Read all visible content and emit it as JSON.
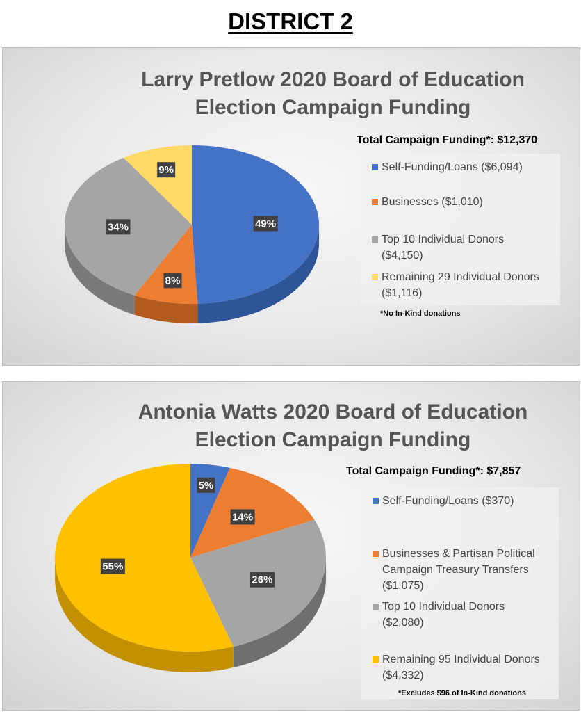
{
  "page_title": "DISTRICT 2",
  "chart_data": [
    {
      "type": "pie",
      "title_line1": "Larry Pretlow 2020 Board of Education",
      "title_line2": "Election Campaign Funding",
      "total_label": "Total Campaign Funding*: $12,370",
      "footnote": "*No In-Kind donations",
      "slices": [
        {
          "label_line1": "Self-Funding/Loans ($6,094)",
          "label_line2": "",
          "value": 6094,
          "percent_label": "49%",
          "color": "#4472c4",
          "side": "#2e5597"
        },
        {
          "label_line1": "Businesses ($1,010)",
          "label_line2": "",
          "value": 1010,
          "percent_label": "8%",
          "color": "#ed7d31",
          "side": "#b35b1f"
        },
        {
          "label_line1": "Top 10 Individual Donors",
          "label_line2": "($4,150)",
          "value": 4150,
          "percent_label": "34%",
          "color": "#a5a5a5",
          "side": "#7a7a7a"
        },
        {
          "label_line1": "Remaining 29 Individual Donors",
          "label_line2": "($1,116)",
          "value": 1116,
          "percent_label": "9%",
          "color": "#ffd966",
          "side": "#c9a83a"
        }
      ]
    },
    {
      "type": "pie",
      "title_line1": "Antonia Watts 2020 Board of Education",
      "title_line2": "Election Campaign Funding",
      "total_label": "Total Campaign Funding*: $7,857",
      "footnote": "*Excludes $96 of In-Kind donations",
      "slices": [
        {
          "label_line1": "Self-Funding/Loans ($370)",
          "label_line2": "",
          "label_line3": "",
          "value": 370,
          "percent_label": "5%",
          "color": "#4472c4",
          "side": "#2e5597"
        },
        {
          "label_line1": "Businesses & Partisan Political",
          "label_line2": "Campaign Treasury Transfers",
          "label_line3": "($1,075)",
          "value": 1075,
          "percent_label": "14%",
          "color": "#ed7d31",
          "side": "#b35b1f"
        },
        {
          "label_line1": "Top 10 Individual Donors",
          "label_line2": "($2,080)",
          "label_line3": "",
          "value": 2080,
          "percent_label": "26%",
          "color": "#a5a5a5",
          "side": "#6f6f6f"
        },
        {
          "label_line1": "Remaining 95 Individual Donors",
          "label_line2": "($4,332)",
          "label_line3": "",
          "value": 4332,
          "percent_label": "55%",
          "color": "#ffc000",
          "side": "#c29000"
        }
      ]
    }
  ]
}
